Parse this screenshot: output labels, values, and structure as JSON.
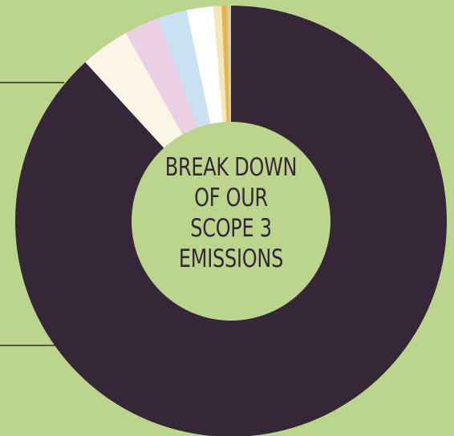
{
  "colors": {
    "background": "#bcd58c",
    "center": "#bcd58c",
    "text": "#352738",
    "leader_line": "#352738"
  },
  "center_title_lines": [
    "BREAK DOWN",
    "OF OUR",
    "SCOPE 3",
    "EMISSIONS"
  ],
  "chart_data": {
    "type": "pie",
    "title": "BREAK DOWN OF OUR SCOPE 3 EMISSIONS",
    "donut": true,
    "start_angle_deg": 0,
    "direction": "clockwise",
    "legend": "none",
    "slices": [
      {
        "value": 88.2,
        "color": "#352738"
      },
      {
        "value": 3.7,
        "color": "#fbf5e6"
      },
      {
        "value": 2.6,
        "color": "#ebd0e6"
      },
      {
        "value": 2.2,
        "color": "#c9e1f1"
      },
      {
        "value": 2.0,
        "color": "#ffffff"
      },
      {
        "value": 0.6,
        "color": "#f6e7b8"
      },
      {
        "value": 0.4,
        "color": "#e9b44c"
      },
      {
        "value": 0.3,
        "color": "#d5cfa4"
      }
    ]
  }
}
